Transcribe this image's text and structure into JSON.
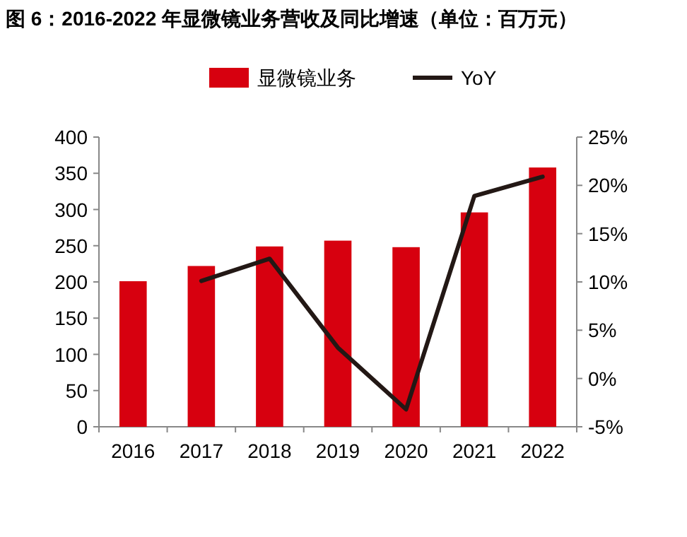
{
  "chart_data": {
    "type": "bar",
    "title": "图 6：2016-2022 年显微镜业务营收及同比增速（单位：百万元）",
    "categories": [
      "2016",
      "2017",
      "2018",
      "2019",
      "2020",
      "2021",
      "2022"
    ],
    "series": [
      {
        "name": "显微镜业务",
        "color": "#d7000f",
        "values": [
          201,
          222,
          249,
          257,
          248,
          296,
          358
        ]
      },
      {
        "name": "YoY",
        "type": "line",
        "axis": "y2",
        "color": "#231815",
        "values": [
          null,
          10.1,
          12.4,
          3.2,
          -3.2,
          18.9,
          20.9
        ]
      }
    ],
    "ylim": [
      0,
      400
    ],
    "yticks": [
      0,
      50,
      100,
      150,
      200,
      250,
      300,
      350,
      400
    ],
    "y2lim": [
      -5,
      25
    ],
    "y2ticks": [
      {
        "value": -5,
        "label": "-5%"
      },
      {
        "value": 0,
        "label": "0%"
      },
      {
        "value": 5,
        "label": "5%"
      },
      {
        "value": 10,
        "label": "10%"
      },
      {
        "value": 15,
        "label": "15%"
      },
      {
        "value": 20,
        "label": "20%"
      },
      {
        "value": 25,
        "label": "25%"
      }
    ],
    "grid": false,
    "legend": "top",
    "marker": "none",
    "line_style": "solid"
  }
}
